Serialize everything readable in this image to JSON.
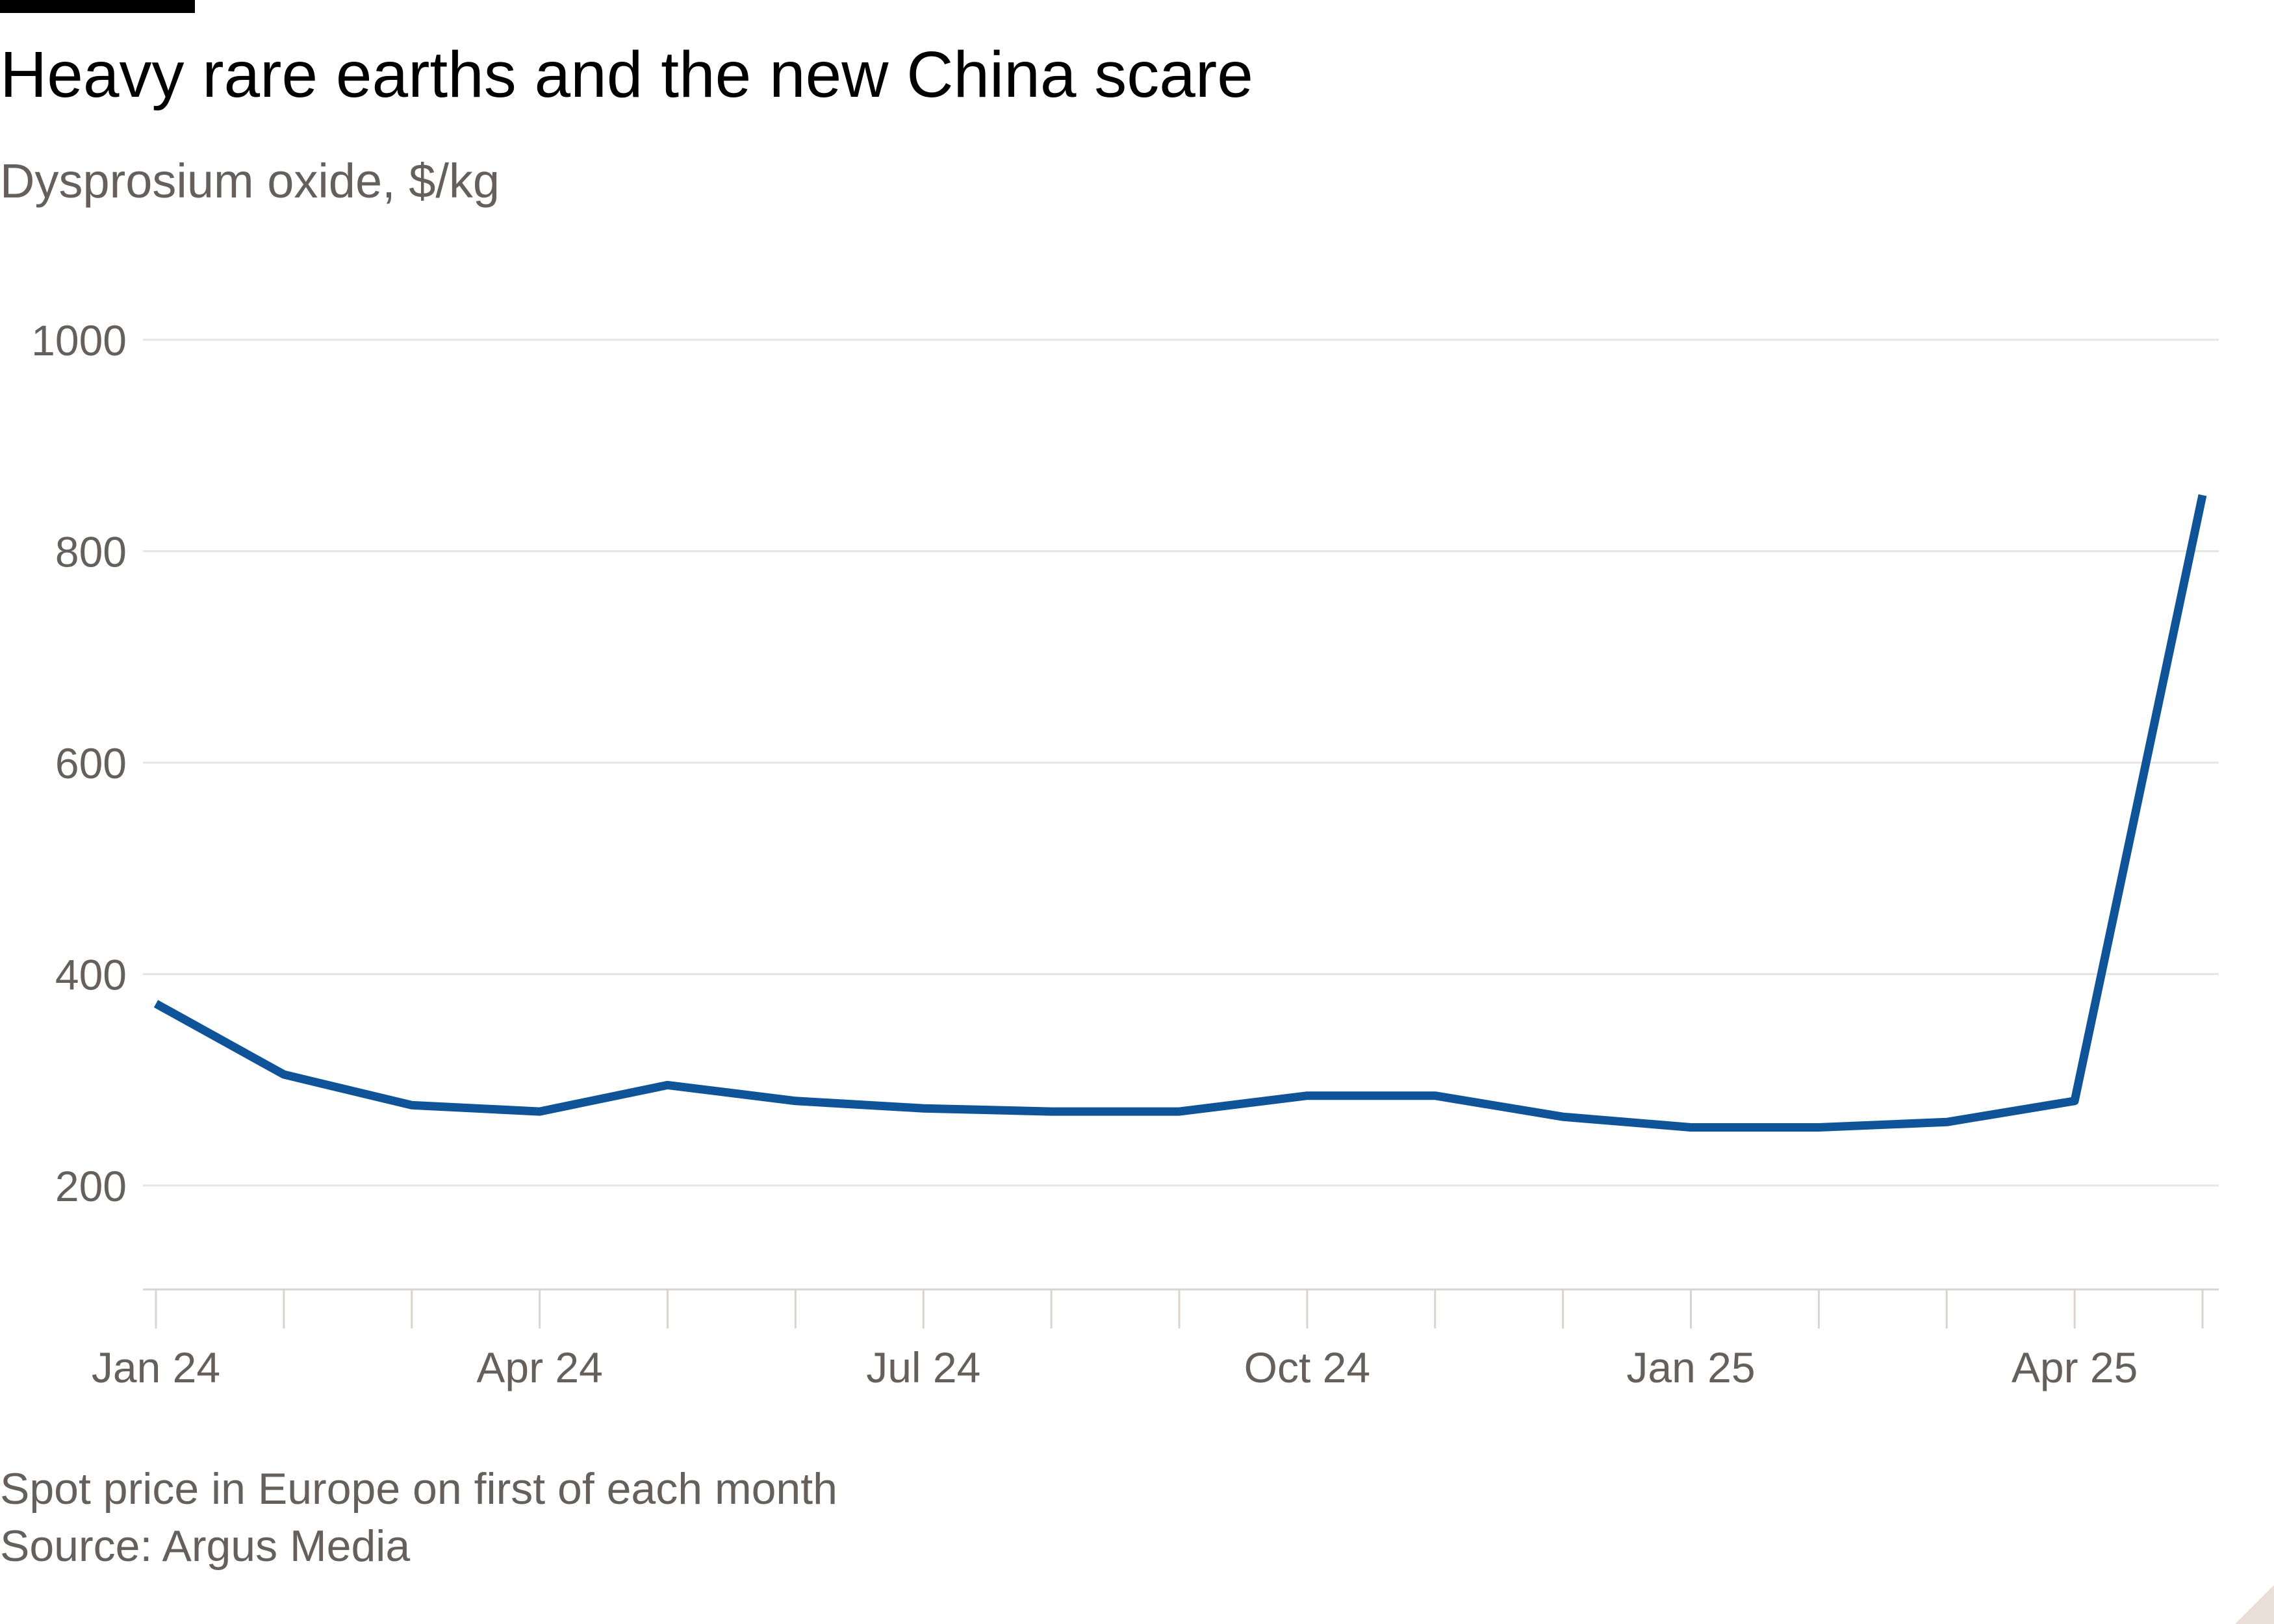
{
  "header": {
    "title": "Heavy rare earths and the new China scare",
    "subtitle": "Dysprosium oxide, $/kg"
  },
  "footer": {
    "note": "Spot price in Europe on first of each month",
    "source": "Source: Argus Media"
  },
  "colors": {
    "series": "#0f5499",
    "grid": "#e8e4e0",
    "axis_text": "#66605c",
    "baseline": "#d9d4cf",
    "brand_bar": "#000000"
  },
  "chart_data": {
    "type": "line",
    "title": "Heavy rare earths and the new China scare",
    "subtitle": "Dysprosium oxide, $/kg",
    "xlabel": "",
    "ylabel": "",
    "x": [
      "2024-01",
      "2024-02",
      "2024-03",
      "2024-04",
      "2024-05",
      "2024-06",
      "2024-07",
      "2024-08",
      "2024-09",
      "2024-10",
      "2024-11",
      "2024-12",
      "2025-01",
      "2025-02",
      "2025-03",
      "2025-04",
      "2025-05"
    ],
    "series": [
      {
        "name": "",
        "values": [
          372,
          305,
          276,
          270,
          295,
          280,
          273,
          270,
          270,
          285,
          285,
          265,
          255,
          255,
          260,
          280,
          853
        ]
      }
    ],
    "ylim": [
      100,
      1000
    ],
    "yticks": [
      200,
      400,
      600,
      800,
      1000
    ],
    "xtick_labels": [
      {
        "month": "2024-01",
        "label": "Jan 24"
      },
      {
        "month": "2024-04",
        "label": "Apr 24"
      },
      {
        "month": "2024-07",
        "label": "Jul 24"
      },
      {
        "month": "2024-10",
        "label": "Oct 24"
      },
      {
        "month": "2025-01",
        "label": "Jan 25"
      },
      {
        "month": "2025-04",
        "label": "Apr 25"
      }
    ],
    "grid": true,
    "legend": "none"
  }
}
